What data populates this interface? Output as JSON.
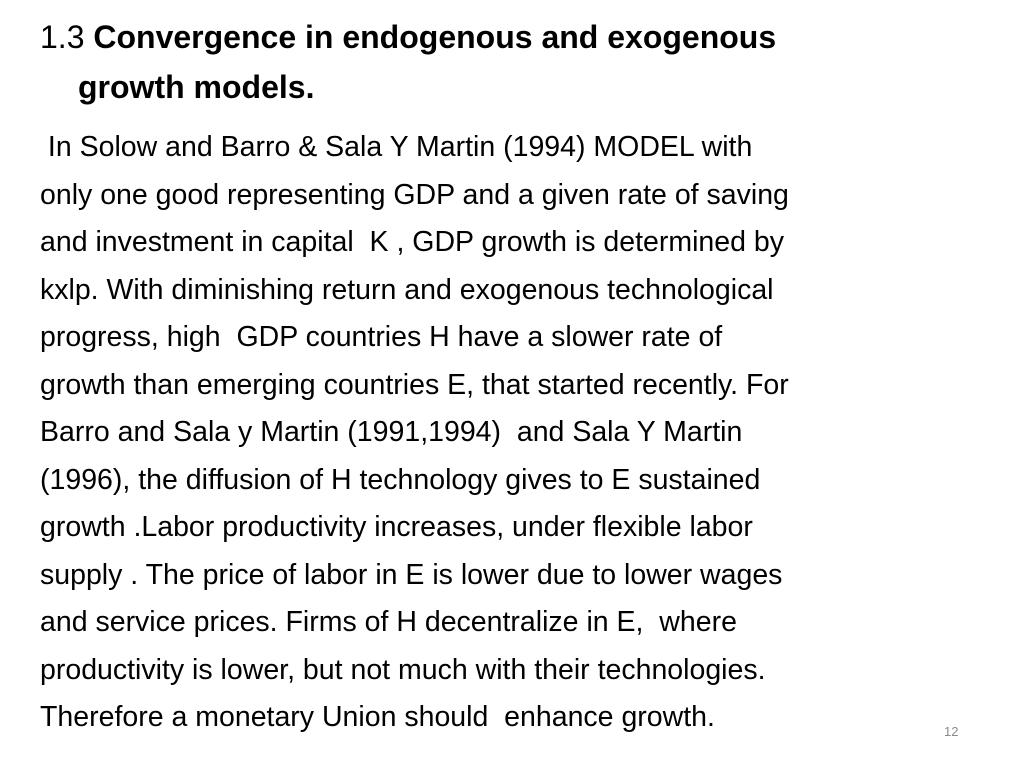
{
  "slide": {
    "title": {
      "number": "1.3",
      "line1": "Convergence in endogenous and exogenous",
      "line2": "growth models."
    },
    "body_lines": [
      " In Solow and Barro & Sala Y Martin (1994) MODEL with",
      "only one good representing GDP and a given rate of saving",
      "and investment in capital  K , GDP growth is determined by",
      "kxlp. With diminishing return and exogenous technological",
      "progress, high  GDP countries H have a slower rate of",
      "growth than emerging countries E, that started recently. For",
      "Barro and Sala y Martin (1991,1994)  and Sala Y Martin",
      "(1996), the diffusion of H technology gives to E sustained",
      "growth .Labor productivity increases, under flexible labor",
      "supply . The price of labor in E is lower due to lower wages",
      "and service prices. Firms of H decentralize in E,  where",
      "productivity is lower, but not much with their technologies.",
      "Therefore a monetary Union should  enhance growth."
    ],
    "page_number": "12"
  }
}
